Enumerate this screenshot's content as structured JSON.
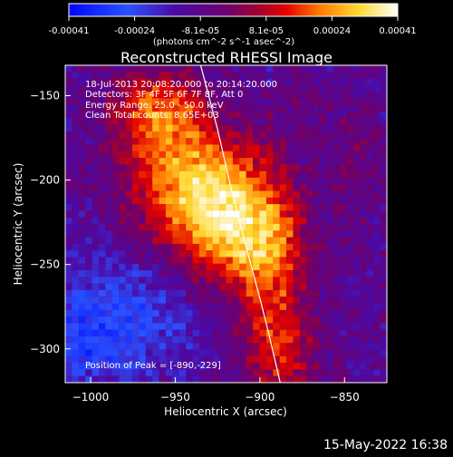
{
  "chart_data": {
    "type": "heatmap",
    "title": "Reconstructed RHESSI Image",
    "xlabel": "Heliocentric X (arcsec)",
    "ylabel": "Heliocentric Y (arcsec)",
    "x_ticks": [
      -1000,
      -950,
      -900,
      -850
    ],
    "y_ticks": [
      -300,
      -250,
      -200,
      -150
    ],
    "xlim": [
      -1015,
      -825
    ],
    "ylim": [
      -320,
      -132
    ],
    "colorbar": {
      "ticks": [
        "-0.00041",
        "-0.00024",
        "-8.1e-05",
        "8.1e-05",
        "0.00024",
        "0.00041"
      ],
      "label": "(photons cm^-2 s^-1 asec^-2)",
      "range": [
        -0.00041,
        0.00041
      ]
    },
    "annotations": {
      "time_range": "18-Jul-2013 20:08:20.000 to 20:14:20.000",
      "detectors": "Detectors: 3F 4F 5F 6F 7F 8F, Att 0",
      "energy_range": "Energy Range: 25.0 - 50.0 keV",
      "clean_counts": "Clean     Total counts: 8.65E+03",
      "peak_position": "Position of Peak = [-890,-229]"
    },
    "limb_curve": {
      "points": [
        [
          -935,
          -132
        ],
        [
          -925,
          -170
        ],
        [
          -917,
          -205
        ],
        [
          -908,
          -240
        ],
        [
          -900,
          -270
        ],
        [
          -895,
          -290
        ],
        [
          -888,
          -320
        ]
      ]
    },
    "peak": {
      "x": -890,
      "y": -229
    }
  },
  "footer": {
    "date": "15-May-2022 16:38"
  },
  "icons": {
    "colorbar": "colorbar-legend",
    "image": "rhessi-image"
  }
}
